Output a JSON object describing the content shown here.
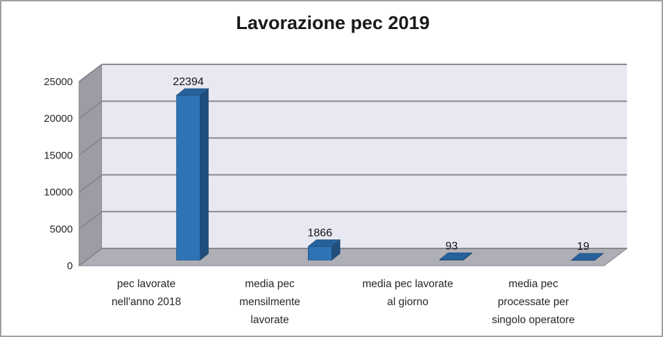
{
  "chart_data": {
    "type": "bar",
    "style": "3d-column",
    "title": "Lavorazione pec 2019",
    "categories": [
      "pec lavorate nell'anno 2018",
      "media pec mensilmente lavorate",
      "media pec lavorate al giorno",
      "media pec processate per singolo operatore"
    ],
    "category_lines": [
      [
        "pec lavorate",
        "nell'anno 2018"
      ],
      [
        "media pec",
        "mensilmente",
        "lavorate"
      ],
      [
        "media pec lavorate",
        "al giorno"
      ],
      [
        "media pec",
        "processate per",
        "singolo operatore"
      ]
    ],
    "values": [
      22394,
      1866,
      93,
      19
    ],
    "data_labels": [
      "22394",
      "1866",
      "93",
      "19"
    ],
    "y_ticks": [
      0,
      5000,
      10000,
      15000,
      20000,
      25000
    ],
    "y_tick_labels": [
      "0",
      "5000",
      "10000",
      "15000",
      "20000",
      "25000"
    ],
    "ylim": [
      0,
      25000
    ],
    "xlabel": "",
    "ylabel": "",
    "grid": true,
    "legend": false,
    "colors": {
      "bar_front": "#2E73B4",
      "bar_top": "#26619C",
      "bar_side": "#1F4E7C",
      "bar_edge": "#1C4871",
      "back_wall": "#E8E8F2",
      "side_wall": "#9C9CA5",
      "floor": "#AEAEB6",
      "gridline": "#87878C",
      "edge": "#80808A",
      "text": "#262626",
      "title": "#1A1A1A",
      "frame": "#9FA0A6",
      "background": "#FFFFFF"
    }
  }
}
